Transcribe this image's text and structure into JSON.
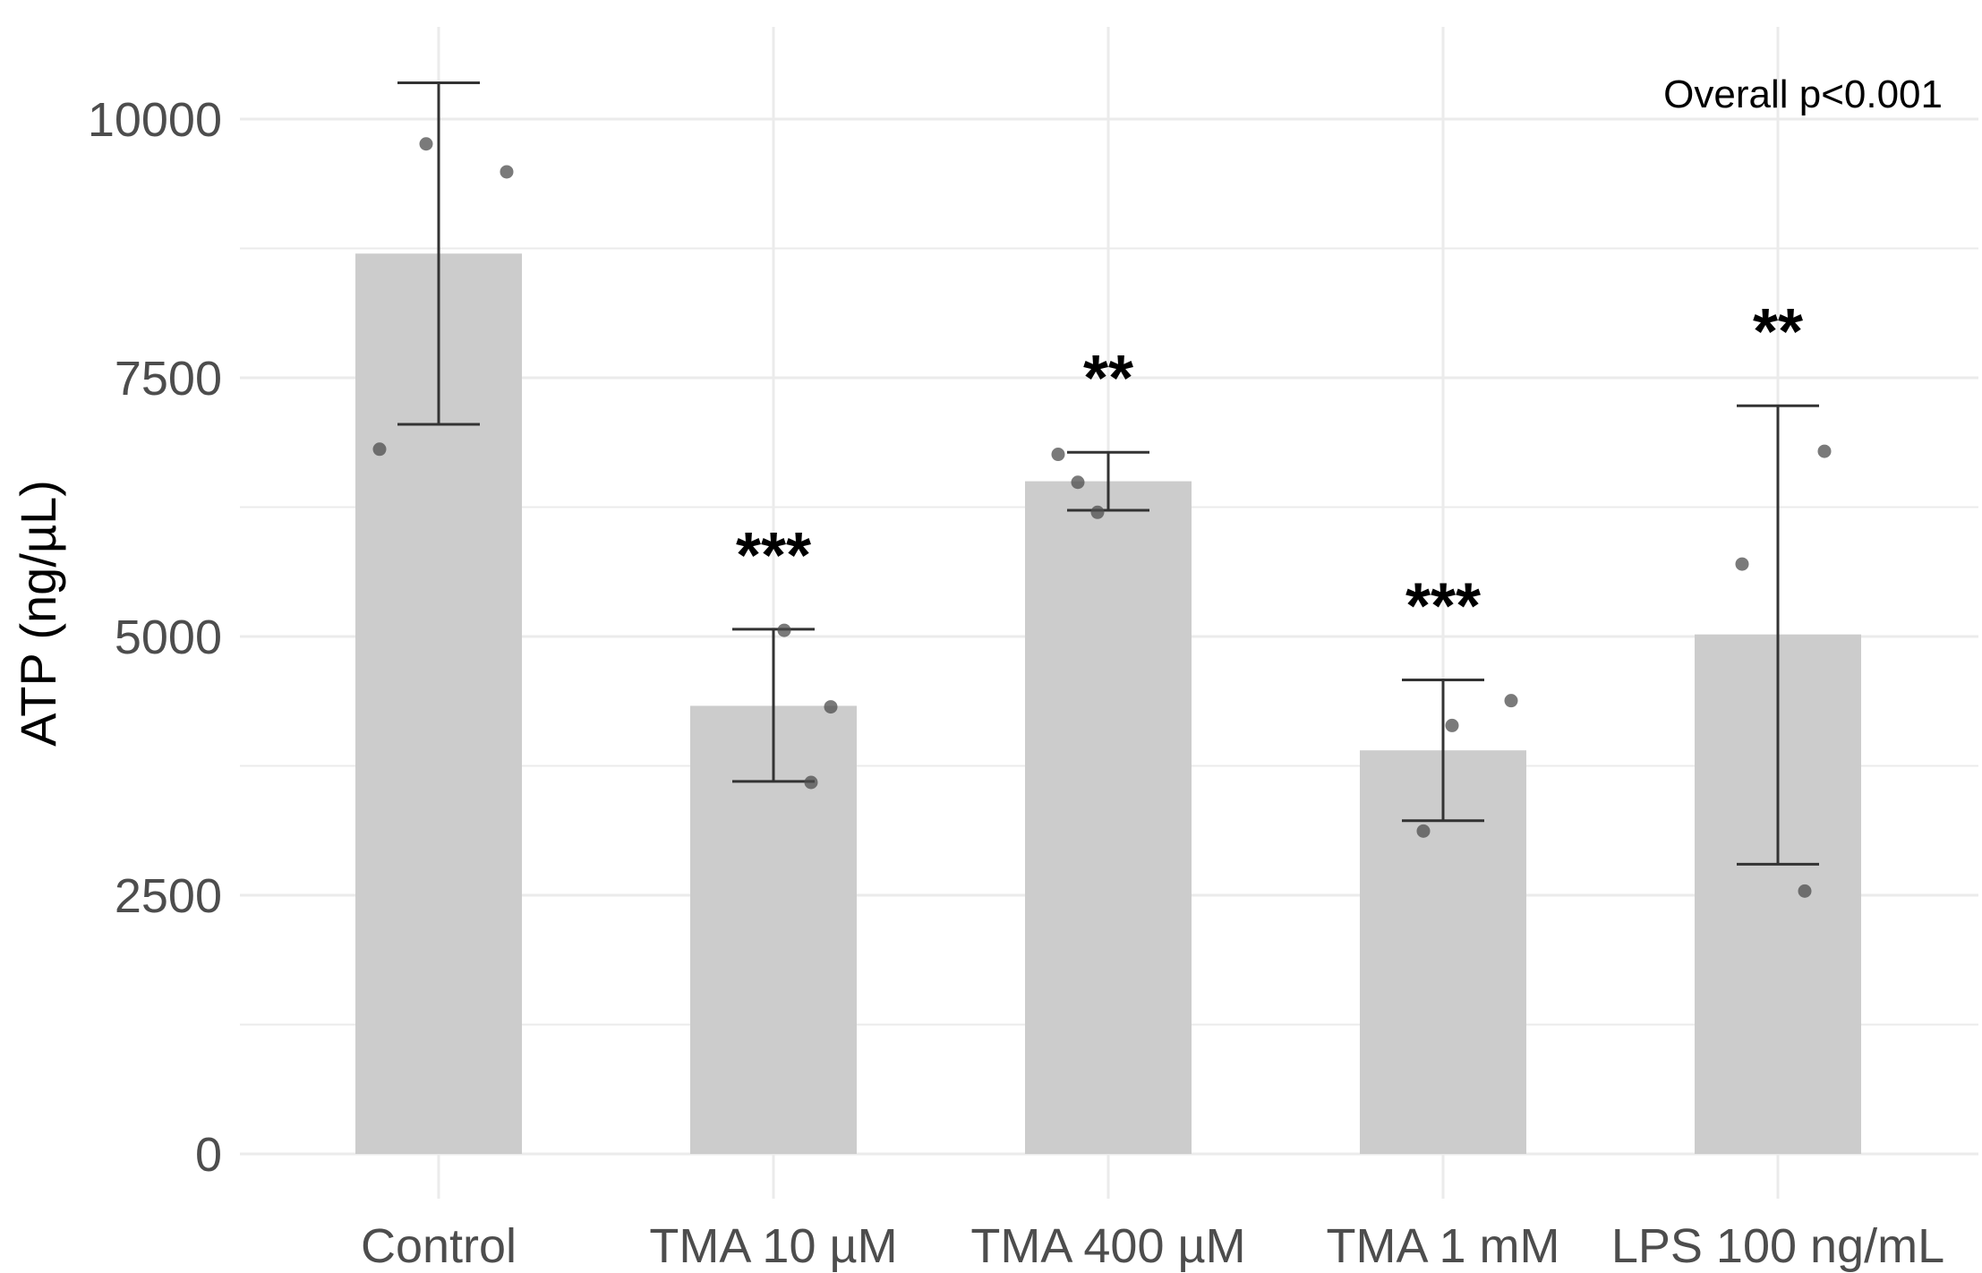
{
  "chart_data": {
    "type": "bar",
    "title": "",
    "xlabel": "",
    "ylabel": "ATP (ng/µL)",
    "ylim": [
      0,
      10500
    ],
    "yticks": [
      0,
      2500,
      5000,
      7500,
      10000
    ],
    "grid": true,
    "categories": [
      "Control",
      "TMA 10 µM",
      "TMA 400 µM",
      "TMA 1 mM",
      "LPS 100 ng/mL"
    ],
    "values": [
      8700,
      4330,
      6500,
      3900,
      5020
    ],
    "error_low": [
      7050,
      3600,
      6220,
      3220,
      2800
    ],
    "error_high": [
      10350,
      5070,
      6780,
      4580,
      7230
    ],
    "points": [
      [
        9760,
        9490,
        6810
      ],
      [
        5060,
        4320,
        3590
      ],
      [
        6760,
        6490,
        6200
      ],
      [
        4380,
        4140,
        3120
      ],
      [
        5700,
        6790,
        2540
      ]
    ],
    "significance": [
      "",
      "***",
      "**",
      "***",
      "**"
    ],
    "annotation": "Overall p<0.001",
    "colors": {
      "bar": "#cccccc",
      "point": "#4d4d4d",
      "errorbar": "#333333",
      "grid": "#ebebeb"
    }
  }
}
